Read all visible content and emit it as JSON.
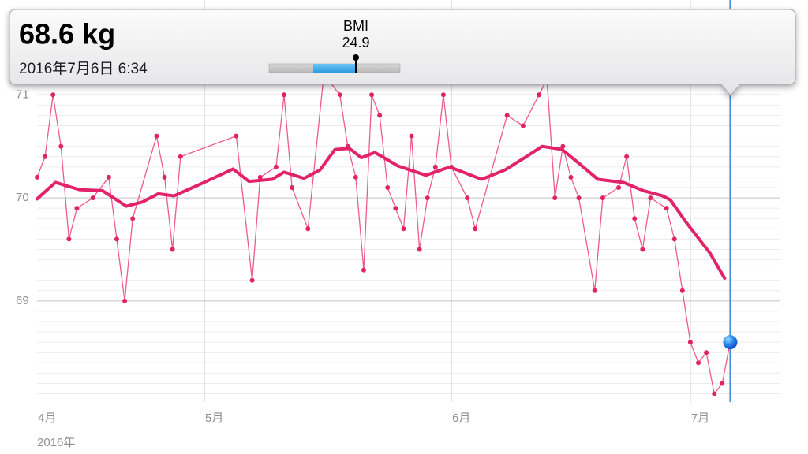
{
  "chart_data": {
    "type": "line",
    "xlim": [
      101,
      194.2
    ],
    "ylim": [
      68.02,
      71.92
    ],
    "xticks": [
      {
        "value": 92,
        "label": "4月"
      },
      {
        "value": 122,
        "label": "5月"
      },
      {
        "value": 153,
        "label": "6月"
      },
      {
        "value": 183,
        "label": "7月"
      }
    ],
    "yticks": [
      69,
      70,
      71
    ],
    "x_axis_year": "2016年",
    "grid": true,
    "series": [
      {
        "color": "#ef5b8c",
        "marker": true,
        "x": [
          101,
          102,
          103,
          104,
          105,
          106,
          108,
          110,
          111,
          112,
          113,
          116,
          117,
          118,
          119,
          126,
          128,
          129,
          131,
          132,
          133,
          135,
          137,
          139,
          140,
          141,
          142,
          143,
          144,
          145,
          146,
          147,
          148,
          149,
          150,
          151,
          152,
          153,
          155,
          156,
          160,
          162,
          164,
          165,
          166,
          167,
          168,
          169,
          171,
          172,
          174,
          175,
          176,
          177,
          178,
          180,
          181,
          182,
          183,
          184,
          185,
          186,
          187,
          188
        ],
        "values": [
          70.2,
          70.4,
          71.0,
          70.5,
          69.6,
          69.9,
          70.0,
          70.2,
          69.6,
          69.0,
          69.8,
          70.6,
          70.2,
          69.5,
          70.4,
          70.6,
          69.2,
          70.2,
          70.3,
          71.0,
          70.1,
          69.7,
          71.2,
          71.0,
          70.5,
          70.2,
          69.3,
          71.0,
          70.8,
          70.1,
          69.9,
          69.7,
          70.6,
          69.5,
          70.0,
          70.3,
          71.0,
          70.3,
          70.0,
          69.7,
          70.8,
          70.7,
          71.0,
          71.15,
          70.0,
          70.5,
          70.2,
          70.0,
          69.1,
          70.0,
          70.1,
          70.4,
          69.8,
          69.5,
          70.0,
          69.9,
          69.6,
          69.1,
          68.6,
          68.4,
          68.5,
          68.1,
          68.2,
          68.6
        ]
      },
      {
        "color": "#e2236a",
        "marker": false,
        "x": [
          101.0,
          103.3,
          106.3,
          109.2,
          112.2,
          114.2,
          116.2,
          118.2,
          121.1,
          125.6,
          127.6,
          130.5,
          132.0,
          134.5,
          136.5,
          138.4,
          140.2,
          141.7,
          143.4,
          146.3,
          149.8,
          152.8,
          156.8,
          159.7,
          162.2,
          164.4,
          166.9,
          169.1,
          171.4,
          174.6,
          177.1,
          179.5,
          180.5,
          182.5,
          185.5,
          187.3
        ],
        "values": [
          69.99,
          70.15,
          70.08,
          70.07,
          69.92,
          69.96,
          70.04,
          70.02,
          70.12,
          70.28,
          70.16,
          70.18,
          70.25,
          70.19,
          70.27,
          70.47,
          70.48,
          70.39,
          70.44,
          70.31,
          70.22,
          70.3,
          70.18,
          70.27,
          70.39,
          70.5,
          70.47,
          70.33,
          70.18,
          70.15,
          70.07,
          70.02,
          69.98,
          69.76,
          69.46,
          69.22
        ]
      }
    ]
  },
  "tooltip": {
    "weight": "68.6 kg",
    "date": "2016年7月6日 6:34",
    "bmi_label": "BMI",
    "bmi_value": "24.9"
  }
}
